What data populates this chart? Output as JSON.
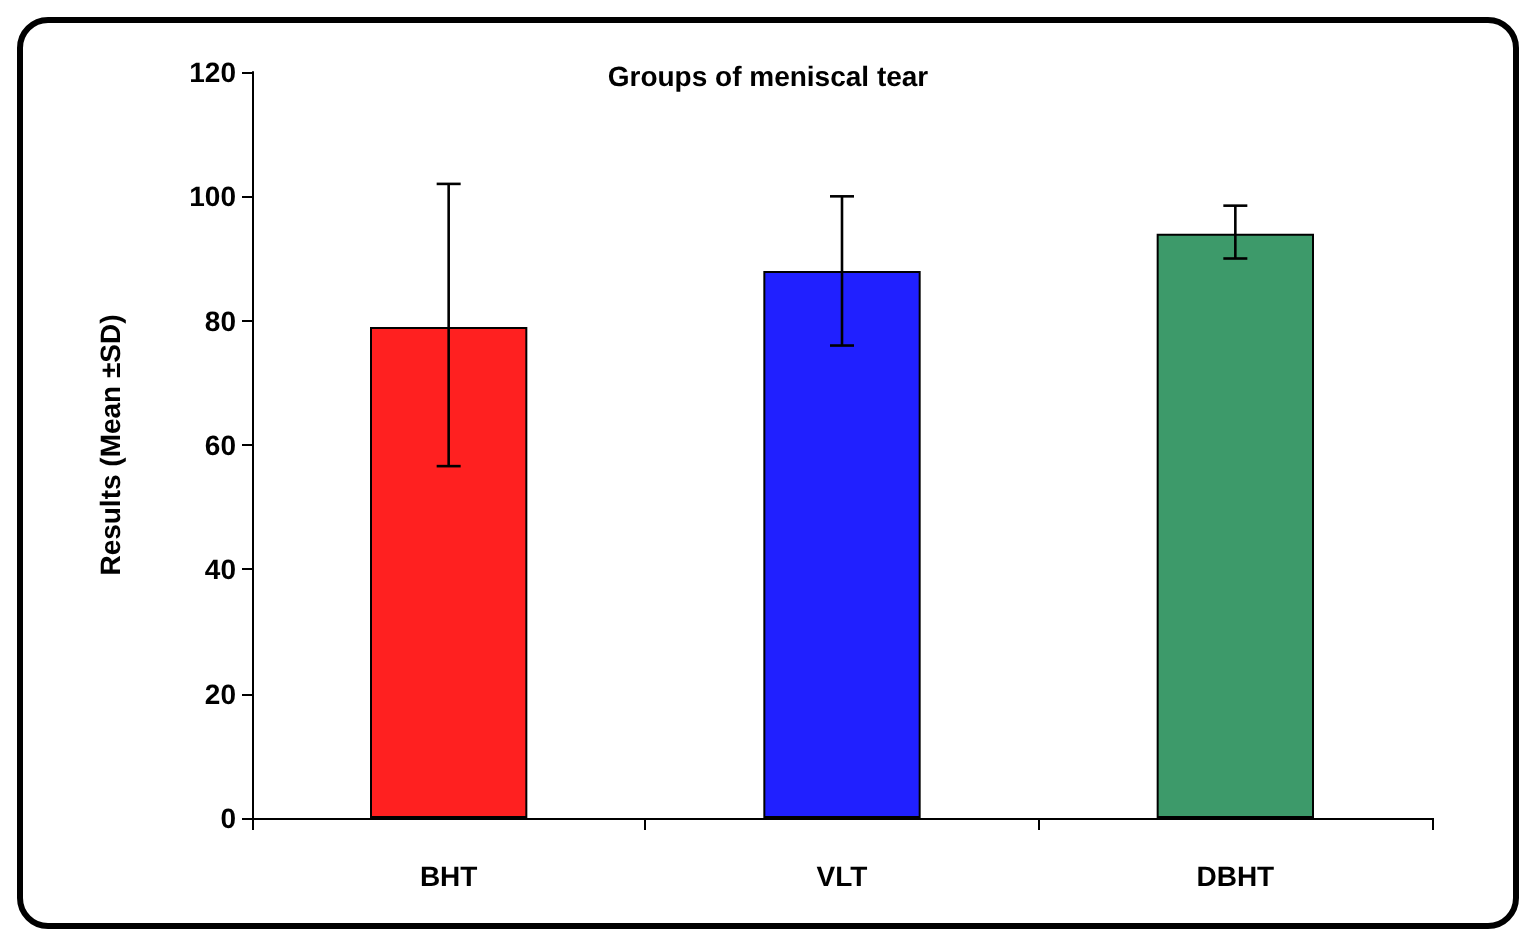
{
  "chart_data": {
    "type": "bar",
    "title": "Groups of meniscal tear",
    "ylabel": "Results (Mean ±SD)",
    "categories": [
      "BHT",
      "VLT",
      "DBHT"
    ],
    "values": [
      79,
      88,
      94
    ],
    "errors": [
      [
        56.6,
        102
      ],
      [
        76,
        100
      ],
      [
        90,
        98.5
      ]
    ],
    "colors": [
      "#ff2020",
      "#2020ff",
      "#3d9a6a"
    ],
    "ylim": [
      0,
      120
    ],
    "yticks": [
      0,
      20,
      40,
      60,
      80,
      100,
      120
    ],
    "grid": false
  }
}
